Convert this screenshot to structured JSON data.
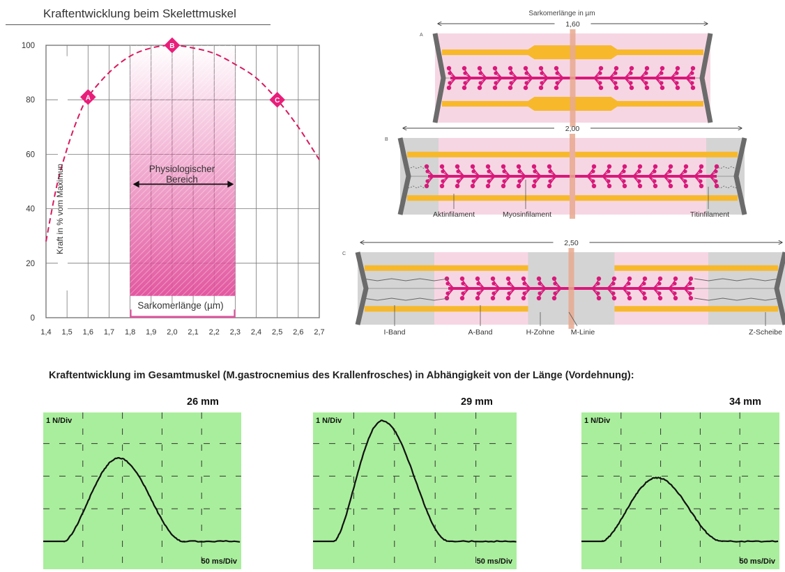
{
  "title": "Kraftentwicklung beim Skelettmuskel",
  "chart_data": {
    "type": "line",
    "ylabel": "Kraft in % vom Maximun",
    "xlabel": "Sarkomerlänge (µm)",
    "xlim": [
      1.4,
      2.7
    ],
    "ylim": [
      0,
      100
    ],
    "x_ticks": [
      "1,4",
      "1,5",
      "1,6",
      "1,7",
      "1,8",
      "1,9",
      "2,0",
      "2,1",
      "2,2",
      "2,3",
      "2,4",
      "2,5",
      "2,6",
      "2,7"
    ],
    "y_ticks": [
      "0",
      "20",
      "40",
      "60",
      "80",
      "100"
    ],
    "points": [
      {
        "x": 1.4,
        "y": 28
      },
      {
        "x": 1.45,
        "y": 48
      },
      {
        "x": 1.5,
        "y": 62
      },
      {
        "x": 1.55,
        "y": 73
      },
      {
        "x": 1.6,
        "y": 81
      },
      {
        "x": 1.7,
        "y": 90
      },
      {
        "x": 1.8,
        "y": 96
      },
      {
        "x": 1.9,
        "y": 99
      },
      {
        "x": 2.0,
        "y": 100
      },
      {
        "x": 2.1,
        "y": 99
      },
      {
        "x": 2.2,
        "y": 97
      },
      {
        "x": 2.3,
        "y": 93
      },
      {
        "x": 2.4,
        "y": 88
      },
      {
        "x": 2.5,
        "y": 80
      },
      {
        "x": 2.6,
        "y": 70
      },
      {
        "x": 2.7,
        "y": 58
      }
    ],
    "markers": [
      {
        "label": "A",
        "x": 1.6,
        "y": 81
      },
      {
        "label": "B",
        "x": 2.0,
        "y": 100
      },
      {
        "label": "C",
        "x": 2.5,
        "y": 80
      }
    ],
    "region": {
      "label_line1": "Physiologischer",
      "label_line2": "Bereich",
      "from": 1.8,
      "to": 2.3
    },
    "colors": {
      "curve": "#d81b60",
      "marker": "#e91e7a",
      "region": "#e14f9b"
    }
  },
  "sarcomere": {
    "header": "Sarkomerlänge in µm",
    "panels": [
      {
        "letter": "A",
        "length": "1,60"
      },
      {
        "letter": "B",
        "length": "2,00"
      },
      {
        "letter": "C",
        "length": "2,50"
      }
    ],
    "labels_b": {
      "aktin": "Aktinfilament",
      "myosin": "Myosinfilament",
      "titin": "Titinfilament"
    },
    "labels_c": {
      "iband": "I-Band",
      "aband": "A-Band",
      "hzone": "H-Zohne",
      "mline": "M-Linie",
      "zdisc": "Z-Scheibe"
    }
  },
  "bottom_title": "Kraftentwicklung im Gesamtmuskel (M.gastrocnemius des Krallenfrosches) in Abhängigkeit von der Länge (Vordehnung):",
  "scopes": [
    {
      "label": "26 mm",
      "y_scale": "1 N/Div",
      "x_scale": "50 ms/Div",
      "peak_div": 2.55
    },
    {
      "label": "29 mm",
      "y_scale": "1 N/Div",
      "x_scale": "50 ms/Div",
      "peak_div": 3.7
    },
    {
      "label": "34 mm",
      "y_scale": "1 N/Div",
      "x_scale": "50 ms/Div",
      "peak_div": 1.95
    }
  ]
}
